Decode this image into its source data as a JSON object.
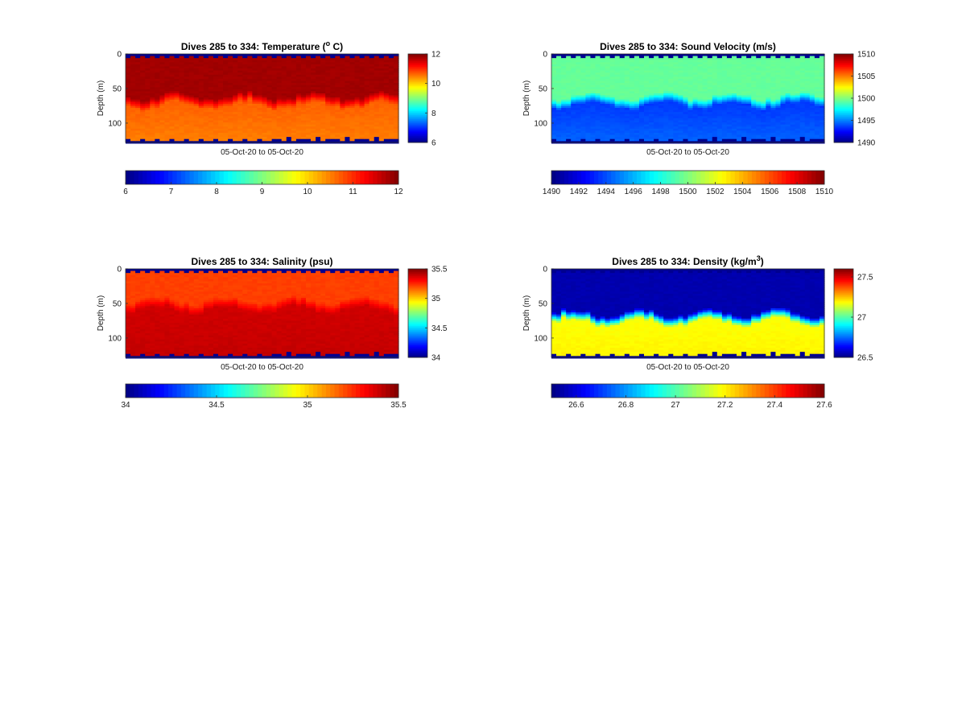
{
  "chart_data": [
    {
      "type": "heatmap",
      "title_main": "Dives 285 to 334: Temperature (",
      "title_sup": "o",
      "title_end": " C)",
      "variable": "temperature",
      "xlabel": "05-Oct-20 to 05-Oct-20",
      "ylabel": "Depth (m)",
      "ylim": [
        0,
        128
      ],
      "y_ticks": [
        0,
        50,
        100
      ],
      "clim": [
        6,
        12
      ],
      "vertical_colorbar_ticks": [
        6,
        8,
        10,
        12
      ],
      "horizontal_colorbar_ticks": [
        6,
        7,
        8,
        9,
        10,
        11,
        12
      ],
      "profile": {
        "upper_value": 11.8,
        "lower_value": 10.7,
        "bottom_value": 10.5,
        "thermocline_depth": 65
      }
    },
    {
      "type": "heatmap",
      "title_main": "Dives 285 to 334: Sound Velocity (m/s)",
      "title_sup": "",
      "title_end": "",
      "variable": "sound_velocity",
      "xlabel": "05-Oct-20 to 05-Oct-20",
      "ylabel": "Depth (m)",
      "ylim": [
        0,
        128
      ],
      "y_ticks": [
        0,
        50,
        100
      ],
      "clim": [
        1490,
        1510
      ],
      "vertical_colorbar_ticks": [
        1490,
        1495,
        1500,
        1505,
        1510
      ],
      "horizontal_colorbar_ticks": [
        1490,
        1492,
        1494,
        1496,
        1498,
        1500,
        1502,
        1504,
        1506,
        1508,
        1510
      ],
      "profile": {
        "upper_value": 1499.5,
        "lower_value": 1493.5,
        "bottom_value": 1494.5,
        "thermocline_depth": 65
      }
    },
    {
      "type": "heatmap",
      "title_main": "Dives 285 to 334: Salinity (psu)",
      "title_sup": "",
      "title_end": "",
      "variable": "salinity",
      "xlabel": "05-Oct-20 to 05-Oct-20",
      "ylabel": "Depth (m)",
      "ylim": [
        0,
        128
      ],
      "y_ticks": [
        0,
        50,
        100
      ],
      "clim": [
        34,
        35.5
      ],
      "vertical_colorbar_ticks": [
        34,
        34.5,
        35,
        35.5
      ],
      "horizontal_colorbar_ticks": [
        34,
        34.5,
        35,
        35.5
      ],
      "profile": {
        "upper_value": 35.22,
        "lower_value": 35.38,
        "bottom_value": 35.4,
        "thermocline_depth": 50
      }
    },
    {
      "type": "heatmap",
      "title_main": "Dives 285 to 334: Density (kg/m",
      "title_sup": "3",
      "title_end": ")",
      "variable": "density",
      "xlabel": "05-Oct-20 to 05-Oct-20",
      "ylabel": "Depth (m)",
      "ylim": [
        0,
        128
      ],
      "y_ticks": [
        0,
        50,
        100
      ],
      "clim": [
        26.5,
        27.6
      ],
      "vertical_colorbar_ticks": [
        26.5,
        27,
        27.5
      ],
      "horizontal_colorbar_ticks": [
        26.6,
        26.8,
        27,
        27.2,
        27.4,
        27.6
      ],
      "profile": {
        "upper_value": 26.55,
        "lower_value": 27.18,
        "bottom_value": 27.2,
        "thermocline_depth": 68
      }
    }
  ],
  "colormap": "jet",
  "missing_color": "#00008f"
}
